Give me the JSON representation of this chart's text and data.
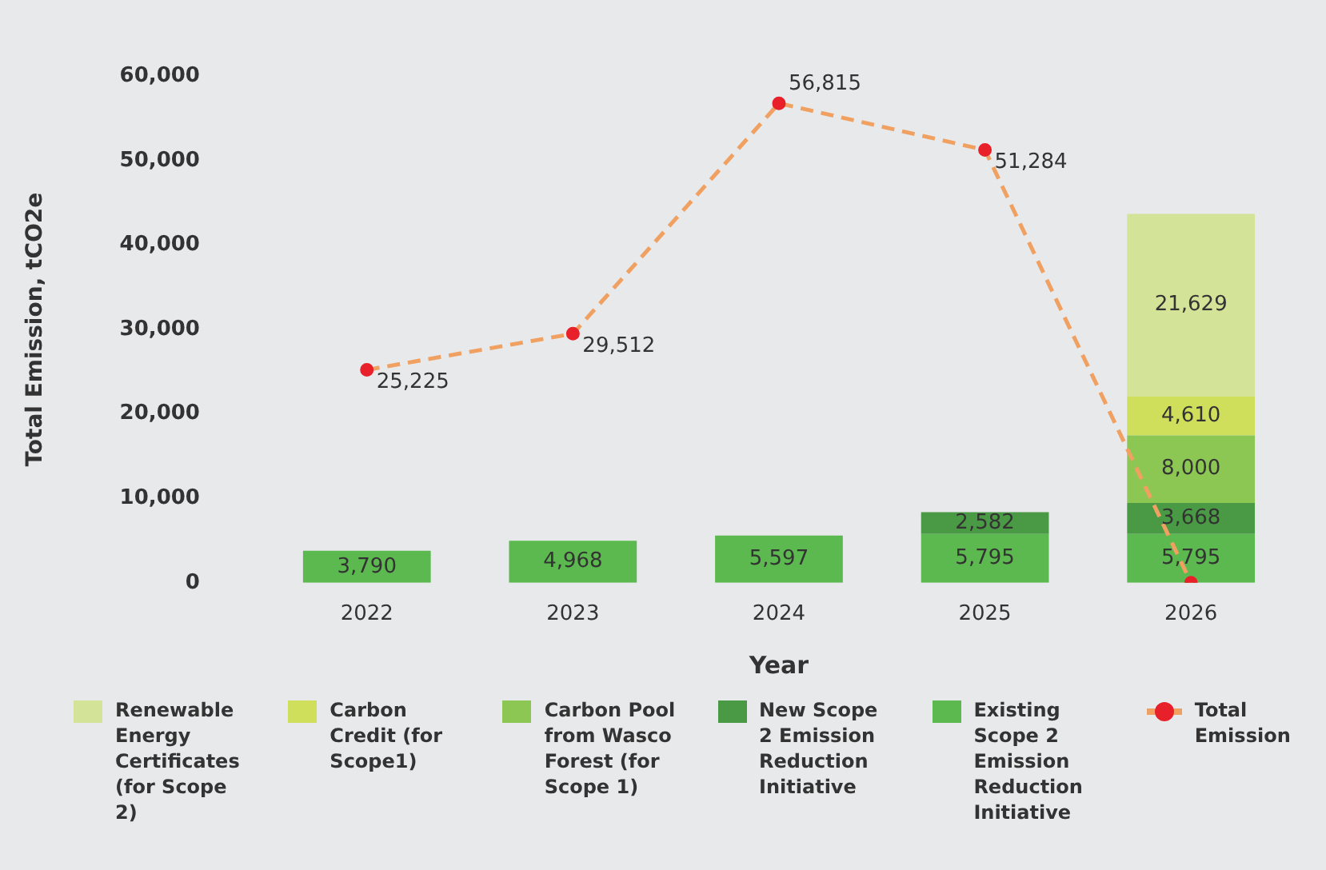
{
  "chart_data": {
    "type": "bar",
    "stacked": true,
    "xlabel": "Year",
    "ylabel": "Total Emission, tCO2e",
    "categories": [
      "2022",
      "2023",
      "2024",
      "2025",
      "2026"
    ],
    "ylim": [
      0,
      60000
    ],
    "yticks": [
      {
        "value": 0,
        "label": "0"
      },
      {
        "value": 10000,
        "label": "10,000"
      },
      {
        "value": 20000,
        "label": "20,000"
      },
      {
        "value": 30000,
        "label": "30,000"
      },
      {
        "value": 40000,
        "label": "40,000"
      },
      {
        "value": 50000,
        "label": "50,000"
      },
      {
        "value": 60000,
        "label": "60,000"
      }
    ],
    "grid": false,
    "legend": "bottom",
    "series": [
      {
        "name": "Existing Scope 2 Emission Reduction Initiative",
        "color": "#5cb94f",
        "values": [
          3790,
          4968,
          5597,
          5795,
          5795
        ],
        "value_labels": [
          "3,790",
          "4,968",
          "5,597",
          "5,795",
          "5,795"
        ]
      },
      {
        "name": "New Scope 2 Emission Reduction Initiative",
        "color": "#4a9a45",
        "values": [
          null,
          null,
          null,
          2582,
          3668
        ],
        "value_labels": [
          null,
          null,
          null,
          "2,582",
          "3,668"
        ]
      },
      {
        "name": "Carbon Pool from Wasco Forest (for Scope 1)",
        "color": "#8cc653",
        "values": [
          null,
          null,
          null,
          null,
          8000
        ],
        "value_labels": [
          null,
          null,
          null,
          null,
          "8,000"
        ]
      },
      {
        "name": "Carbon Credit (for Scope1)",
        "color": "#cfdf5c",
        "values": [
          null,
          null,
          null,
          null,
          4610
        ],
        "value_labels": [
          null,
          null,
          null,
          null,
          "4,610"
        ]
      },
      {
        "name": "Renewable Energy Certificates (for Scope 2)",
        "color": "#d3e398",
        "values": [
          null,
          null,
          null,
          null,
          21629
        ],
        "value_labels": [
          null,
          null,
          null,
          null,
          "21,629"
        ]
      },
      {
        "name": "Total Emission",
        "type": "line",
        "color": "#f0a060",
        "marker": "circle",
        "line_style": "dashed",
        "values": [
          25225,
          29512,
          56815,
          51284,
          0
        ],
        "value_labels": [
          "25,225",
          "29,512",
          "56,815",
          "51,284",
          null
        ]
      }
    ]
  }
}
